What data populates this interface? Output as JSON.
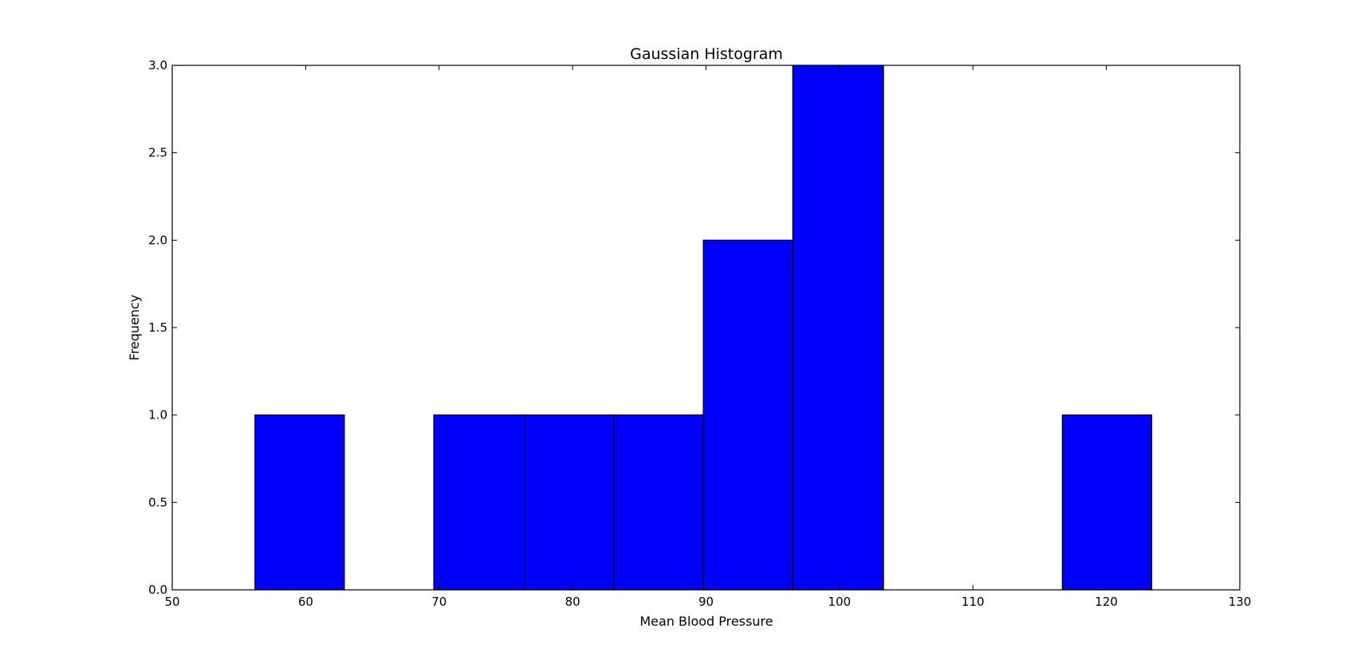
{
  "chart_data": {
    "type": "bar",
    "title": "Gaussian Histogram",
    "xlabel": "Mean Blood Pressure",
    "ylabel": "Frequency",
    "xlim": [
      50,
      130
    ],
    "ylim": [
      0,
      3.0
    ],
    "xticks": [
      50,
      60,
      70,
      80,
      90,
      100,
      110,
      120,
      130
    ],
    "xtick_labels": [
      "50",
      "60",
      "70",
      "80",
      "90",
      "100",
      "110",
      "120",
      "130"
    ],
    "yticks": [
      0,
      0.5,
      1.0,
      1.5,
      2.0,
      2.5,
      3.0
    ],
    "ytick_labels": [
      "0.0",
      "0.5",
      "1.0",
      "1.5",
      "2.0",
      "2.5",
      "3.0"
    ],
    "bins": [
      {
        "start": 56.2,
        "end": 62.9,
        "count": 1
      },
      {
        "start": 62.9,
        "end": 69.6,
        "count": 0
      },
      {
        "start": 69.6,
        "end": 76.4,
        "count": 1
      },
      {
        "start": 76.4,
        "end": 83.1,
        "count": 1
      },
      {
        "start": 83.1,
        "end": 89.8,
        "count": 1
      },
      {
        "start": 89.8,
        "end": 96.5,
        "count": 2
      },
      {
        "start": 96.5,
        "end": 103.3,
        "count": 3
      },
      {
        "start": 103.3,
        "end": 110.0,
        "count": 0
      },
      {
        "start": 110.0,
        "end": 116.7,
        "count": 0
      },
      {
        "start": 116.7,
        "end": 123.4,
        "count": 1
      }
    ],
    "bar_color": "#0000ff",
    "edge_color": "#000000",
    "grid": false,
    "legend": "none"
  }
}
